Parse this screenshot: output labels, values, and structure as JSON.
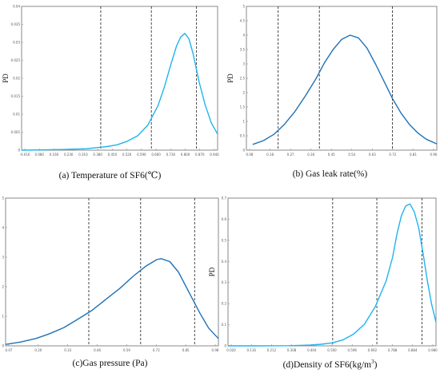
{
  "chart_data": [
    {
      "type": "line",
      "caption": "(a) Temperature of SF6(℃)",
      "ylabel": "PD",
      "x_tick_labels": [
        "-0.016",
        "0.080",
        "0.160",
        "0.230",
        "0.310",
        "0.380",
        "0.450",
        "0.520",
        "0.590",
        "0.660",
        "0.730",
        "0.800",
        "0.870",
        "0.940"
      ],
      "y_tick_labels": [
        "0",
        "0.005",
        "0.01",
        "0.015",
        "0.02",
        "0.025",
        "0.03",
        "0.035",
        "0.04"
      ],
      "xlim": [
        -0.016,
        0.94
      ],
      "ylim": [
        0,
        0.04
      ],
      "curve_color": "#1fb4ef",
      "vlines": [
        0.37,
        0.617,
        0.837
      ],
      "series": [
        {
          "x": [
            -0.016,
            0.1,
            0.2,
            0.3,
            0.35,
            0.4,
            0.45,
            0.5,
            0.55,
            0.6,
            0.65,
            0.68,
            0.71,
            0.74,
            0.76,
            0.78,
            0.8,
            0.82,
            0.85,
            0.88,
            0.91,
            0.94
          ],
          "y": [
            0.0,
            0.0001,
            0.0002,
            0.0004,
            0.0007,
            0.001,
            0.0015,
            0.0025,
            0.004,
            0.007,
            0.0125,
            0.0175,
            0.0235,
            0.029,
            0.0315,
            0.0325,
            0.031,
            0.027,
            0.019,
            0.0125,
            0.0075,
            0.0045
          ]
        }
      ]
    },
    {
      "type": "line",
      "caption": "(b) Gas leak rate(%)",
      "ylabel": "PD",
      "x_tick_labels": [
        "0.08",
        "0.18",
        "0.27",
        "0.36",
        "0.45",
        "0.54",
        "0.63",
        "0.72",
        "0.81",
        "0.90"
      ],
      "y_tick_labels": [
        "0",
        "0.5",
        "1",
        "1.5",
        "2",
        "2.5",
        "3",
        "3.5",
        "4",
        "4.5",
        "5"
      ],
      "xlim": [
        0.05,
        0.95
      ],
      "ylim": [
        0,
        5
      ],
      "curve_color": "#1f72b8",
      "vlines": [
        0.2,
        0.395,
        0.74
      ],
      "series": [
        {
          "x": [
            0.08,
            0.13,
            0.18,
            0.23,
            0.28,
            0.33,
            0.38,
            0.42,
            0.46,
            0.5,
            0.54,
            0.58,
            0.62,
            0.66,
            0.7,
            0.74,
            0.78,
            0.82,
            0.86,
            0.9,
            0.95
          ],
          "y": [
            0.2,
            0.33,
            0.55,
            0.9,
            1.35,
            1.9,
            2.5,
            3.05,
            3.5,
            3.85,
            4.0,
            3.9,
            3.55,
            3.0,
            2.4,
            1.8,
            1.3,
            0.9,
            0.6,
            0.38,
            0.22
          ]
        }
      ]
    },
    {
      "type": "line",
      "caption": "(c)Gas pressure (Pa)",
      "ylabel": "PD",
      "x_tick_labels": [
        "0.07",
        "0.20",
        "0.33",
        "0.46",
        "0.59",
        "0.72",
        "0.85",
        "0.98"
      ],
      "y_tick_labels": [
        "0",
        "1",
        "2",
        "3",
        "4",
        "5"
      ],
      "xlim": [
        0.0,
        0.985
      ],
      "ylim": [
        0,
        5
      ],
      "curve_color": "#1f72b8",
      "vlines": [
        0.385,
        0.625,
        0.875
      ],
      "series": [
        {
          "x": [
            0.0,
            0.07,
            0.14,
            0.2,
            0.27,
            0.33,
            0.4,
            0.46,
            0.53,
            0.59,
            0.65,
            0.7,
            0.72,
            0.76,
            0.8,
            0.85,
            0.9,
            0.94,
            0.985
          ],
          "y": [
            0.05,
            0.13,
            0.25,
            0.4,
            0.62,
            0.88,
            1.2,
            1.55,
            1.95,
            2.35,
            2.7,
            2.92,
            2.95,
            2.85,
            2.5,
            1.8,
            1.1,
            0.6,
            0.25
          ]
        }
      ]
    },
    {
      "type": "line",
      "caption": "(d)Density of SF6(kg/m",
      "caption_sup": "3",
      "caption_end": ")",
      "ylabel": "PD",
      "x_tick_labels": [
        "0.020",
        "0.116",
        "0.212",
        "0.308",
        "0.404",
        "0.500",
        "0.596",
        "0.692",
        "0.788",
        "0.884",
        "0.980"
      ],
      "y_tick_labels": [
        "0",
        "0.1",
        "0.2",
        "0.3",
        "0.4",
        "0.5",
        "0.6",
        "0.7"
      ],
      "xlim": [
        0.02,
        0.98
      ],
      "ylim": [
        0,
        0.75
      ],
      "curve_color": "#1fb4ef",
      "vlines": [
        0.503,
        0.707,
        0.915
      ],
      "series": [
        {
          "x": [
            0.02,
            0.15,
            0.3,
            0.4,
            0.45,
            0.5,
            0.55,
            0.6,
            0.65,
            0.7,
            0.75,
            0.78,
            0.8,
            0.82,
            0.84,
            0.86,
            0.88,
            0.9,
            0.92,
            0.94,
            0.96,
            0.98
          ],
          "y": [
            0.0,
            0.0,
            0.001,
            0.004,
            0.008,
            0.015,
            0.03,
            0.06,
            0.11,
            0.2,
            0.33,
            0.45,
            0.57,
            0.66,
            0.71,
            0.72,
            0.68,
            0.6,
            0.47,
            0.33,
            0.21,
            0.12
          ]
        }
      ]
    }
  ]
}
